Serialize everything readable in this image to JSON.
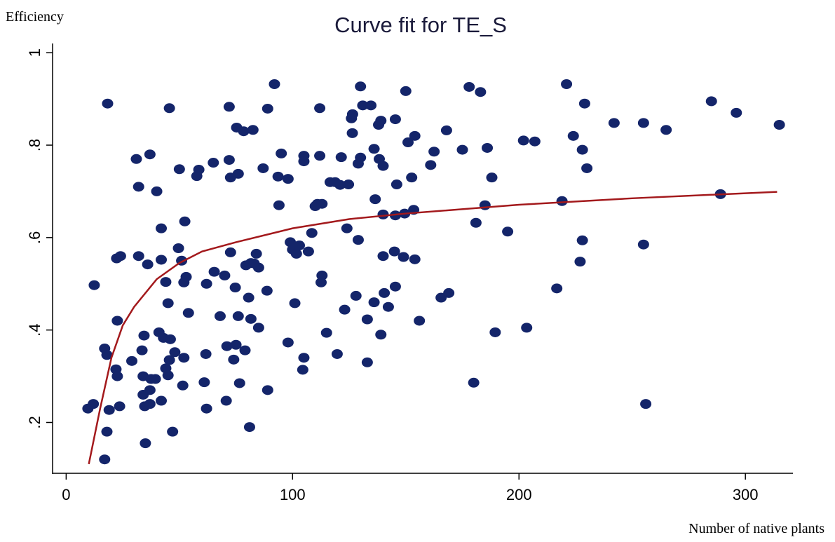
{
  "chart_data": {
    "type": "scatter",
    "title": "Curve fit for TE_S",
    "y_label": "Efficiency",
    "x_label": "Number of native plants",
    "xlim": [
      -6,
      321
    ],
    "ylim": [
      0.09,
      1.02
    ],
    "xticks": [
      0,
      100,
      200,
      300
    ],
    "yticks": [
      {
        "value": 0.2,
        "label": ".2"
      },
      {
        "value": 0.4,
        "label": ".4"
      },
      {
        "value": 0.6,
        "label": ".6"
      },
      {
        "value": 0.8,
        "label": ".8"
      },
      1
    ],
    "points": {
      "color": "#14256a",
      "x": [
        9.6,
        12,
        12.4,
        17,
        18,
        18.3,
        18,
        17,
        19,
        22,
        22.6,
        22.6,
        22.3,
        24,
        23.6,
        29,
        31,
        32,
        32,
        33.5,
        34,
        34.4,
        34,
        34.7,
        35,
        36,
        37,
        37,
        37,
        37.5,
        39.4,
        40,
        41,
        42,
        42,
        42,
        43,
        44,
        44,
        45,
        45,
        45.6,
        45.6,
        46,
        47,
        48,
        49.6,
        50,
        51,
        51.5,
        52,
        52,
        52.4,
        53,
        54,
        57.7,
        58.6,
        61,
        61.7,
        62,
        62,
        65,
        65.4,
        68,
        70,
        70.7,
        71,
        72,
        72,
        72.6,
        72.6,
        74,
        74.7,
        75,
        75.3,
        76,
        76,
        76.6,
        78.4,
        79,
        79.4,
        80.6,
        81,
        81.6,
        81.6,
        82.5,
        83,
        84,
        85,
        85,
        87,
        88.7,
        89,
        89,
        92,
        93.6,
        94,
        95,
        98,
        98,
        99,
        100,
        101,
        101.7,
        103,
        104.5,
        105,
        105,
        105,
        107,
        108.5,
        110,
        111,
        112,
        112,
        112.6,
        113,
        113,
        115,
        116.6,
        118.8,
        119.7,
        121,
        121.5,
        123,
        124,
        124.7,
        126,
        126.4,
        126.5,
        128,
        129,
        129,
        130,
        130,
        131,
        133,
        133,
        134.6,
        136,
        136,
        136.5,
        138,
        138.3,
        139,
        139,
        140,
        140,
        140,
        140.5,
        142.3,
        145,
        145.4,
        145.4,
        145.4,
        146,
        149,
        149.5,
        150,
        151,
        152.6,
        153.5,
        154,
        154,
        156,
        161,
        162.5,
        165.6,
        168,
        169,
        175,
        178,
        180,
        181,
        183,
        185,
        186,
        188,
        189.5,
        195,
        202,
        203.4,
        207,
        216.7,
        219,
        221,
        224,
        227,
        228,
        228,
        229,
        230,
        242,
        255,
        255,
        256,
        265,
        285,
        296,
        289,
        315
      ],
      "y": [
        0.23,
        0.24,
        0.497,
        0.36,
        0.346,
        0.89,
        0.18,
        0.12,
        0.227,
        0.315,
        0.3,
        0.42,
        0.555,
        0.56,
        0.235,
        0.333,
        0.77,
        0.71,
        0.56,
        0.356,
        0.26,
        0.388,
        0.3,
        0.235,
        0.155,
        0.542,
        0.27,
        0.78,
        0.24,
        0.294,
        0.294,
        0.7,
        0.395,
        0.62,
        0.247,
        0.552,
        0.383,
        0.504,
        0.317,
        0.458,
        0.302,
        0.335,
        0.88,
        0.38,
        0.18,
        0.352,
        0.577,
        0.748,
        0.55,
        0.28,
        0.503,
        0.34,
        0.635,
        0.515,
        0.437,
        0.733,
        0.747,
        0.287,
        0.348,
        0.5,
        0.23,
        0.762,
        0.526,
        0.43,
        0.518,
        0.247,
        0.365,
        0.768,
        0.883,
        0.568,
        0.73,
        0.336,
        0.492,
        0.368,
        0.838,
        0.738,
        0.43,
        0.285,
        0.83,
        0.356,
        0.54,
        0.47,
        0.19,
        0.424,
        0.545,
        0.833,
        0.544,
        0.565,
        0.535,
        0.405,
        0.75,
        0.485,
        0.879,
        0.27,
        0.932,
        0.732,
        0.67,
        0.782,
        0.373,
        0.727,
        0.59,
        0.574,
        0.458,
        0.565,
        0.583,
        0.314,
        0.34,
        0.777,
        0.765,
        0.57,
        0.61,
        0.668,
        0.673,
        0.777,
        0.88,
        0.503,
        0.673,
        0.518,
        0.394,
        0.72,
        0.72,
        0.348,
        0.714,
        0.774,
        0.444,
        0.62,
        0.715,
        0.858,
        0.826,
        0.867,
        0.474,
        0.76,
        0.595,
        0.773,
        0.927,
        0.886,
        0.33,
        0.423,
        0.886,
        0.792,
        0.46,
        0.683,
        0.844,
        0.77,
        0.853,
        0.39,
        0.755,
        0.56,
        0.65,
        0.48,
        0.45,
        0.57,
        0.856,
        0.494,
        0.648,
        0.715,
        0.558,
        0.652,
        0.917,
        0.806,
        0.73,
        0.66,
        0.82,
        0.553,
        0.42,
        0.757,
        0.786,
        0.47,
        0.832,
        0.48,
        0.79,
        0.926,
        0.286,
        0.632,
        0.915,
        0.67,
        0.794,
        0.73,
        0.395,
        0.613,
        0.81,
        0.405,
        0.808,
        0.49,
        0.679,
        0.932,
        0.82,
        0.548,
        0.594,
        0.79,
        0.89,
        0.75,
        0.848,
        0.848,
        0.585,
        0.24,
        0.833,
        0.895,
        0.87,
        0.694,
        0.844
      ]
    },
    "fit": {
      "color": "#a3191c",
      "x": [
        10,
        15,
        20,
        25,
        30,
        40,
        50,
        60,
        75,
        100,
        125,
        150,
        200,
        250,
        314
      ],
      "y": [
        0.11,
        0.23,
        0.34,
        0.41,
        0.45,
        0.51,
        0.545,
        0.57,
        0.59,
        0.62,
        0.64,
        0.652,
        0.671,
        0.685,
        0.699
      ]
    }
  }
}
